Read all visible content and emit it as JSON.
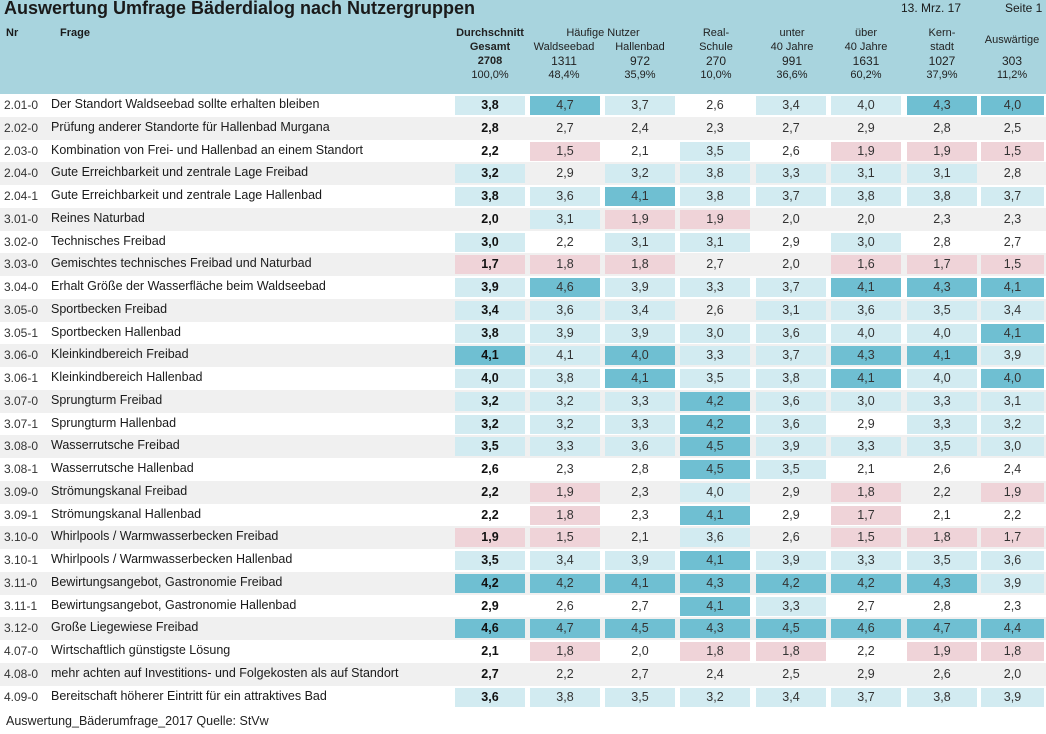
{
  "title": "Auswertung Umfrage Bäderdialog nach Nutzergruppen",
  "date": "13. Mrz. 17",
  "page": "Seite 1",
  "columns_header": {
    "nr": "Nr",
    "frage": "Frage",
    "gesamt_l1": "Durchschnitt",
    "gesamt_l2": "Gesamt",
    "gesamt_n": "2708",
    "gesamt_pct": "100,0%",
    "haeufige": "Häufige Nutzer",
    "waldseebad": "Waldseebad",
    "waldseebad_n": "1311",
    "waldseebad_pct": "48,4%",
    "hallenbad": "Hallenbad",
    "hallenbad_n": "972",
    "hallenbad_pct": "35,9%",
    "real_l1": "Real-",
    "real_l2": "Schule",
    "real_n": "270",
    "real_pct": "10,0%",
    "unter_l1": "unter",
    "unter_l2": "40 Jahre",
    "unter_n": "991",
    "unter_pct": "36,6%",
    "ueber_l1": "über",
    "ueber_l2": "40 Jahre",
    "ueber_n": "1631",
    "ueber_pct": "60,2%",
    "kern_l1": "Kern-",
    "kern_l2": "stadt",
    "kern_n": "1027",
    "kern_pct": "37,9%",
    "aus_l1": "Auswärtige",
    "aus_n": "303",
    "aus_pct": "11,2%"
  },
  "colors": {
    "dark": "#6fbfd2",
    "light": "#d2ebf1",
    "pink": "#efd3d8",
    "header": "#a8d4de"
  },
  "rows": [
    {
      "nr": "2.01-0",
      "frage": "Der Standort Waldseebad sollte erhalten bleiben",
      "v": [
        "3,8",
        "4,7",
        "3,7",
        "2,6",
        "3,4",
        "4,0",
        "4,3",
        "4,0"
      ],
      "c": [
        "l",
        "d",
        "l",
        "n",
        "l",
        "l",
        "d",
        "d"
      ]
    },
    {
      "nr": "2.02-0",
      "frage": "Prüfung anderer Standorte für Hallenbad Murgana",
      "v": [
        "2,8",
        "2,7",
        "2,4",
        "2,3",
        "2,7",
        "2,9",
        "2,8",
        "2,5"
      ],
      "c": [
        "n",
        "n",
        "n",
        "n",
        "n",
        "n",
        "n",
        "n"
      ]
    },
    {
      "nr": "2.03-0",
      "frage": "Kombination von Frei- und Hallenbad an einem Standort",
      "v": [
        "2,2",
        "1,5",
        "2,1",
        "3,5",
        "2,6",
        "1,9",
        "1,9",
        "1,5"
      ],
      "c": [
        "n",
        "p",
        "n",
        "l",
        "n",
        "p",
        "p",
        "p"
      ]
    },
    {
      "nr": "2.04-0",
      "frage": "Gute Erreichbarkeit und zentrale Lage Freibad",
      "v": [
        "3,2",
        "2,9",
        "3,2",
        "3,8",
        "3,3",
        "3,1",
        "3,1",
        "2,8"
      ],
      "c": [
        "l",
        "n",
        "l",
        "l",
        "l",
        "l",
        "l",
        "n"
      ]
    },
    {
      "nr": "2.04-1",
      "frage": "Gute Erreichbarkeit und zentrale Lage Hallenbad",
      "v": [
        "3,8",
        "3,6",
        "4,1",
        "3,8",
        "3,7",
        "3,8",
        "3,8",
        "3,7"
      ],
      "c": [
        "l",
        "l",
        "d",
        "l",
        "l",
        "l",
        "l",
        "l"
      ]
    },
    {
      "nr": "3.01-0",
      "frage": "Reines Naturbad",
      "v": [
        "2,0",
        "3,1",
        "1,9",
        "1,9",
        "2,0",
        "2,0",
        "2,3",
        "2,3"
      ],
      "c": [
        "n",
        "l",
        "p",
        "p",
        "n",
        "n",
        "n",
        "n"
      ]
    },
    {
      "nr": "3.02-0",
      "frage": "Technisches Freibad",
      "v": [
        "3,0",
        "2,2",
        "3,1",
        "3,1",
        "2,9",
        "3,0",
        "2,8",
        "2,7"
      ],
      "c": [
        "l",
        "n",
        "l",
        "l",
        "n",
        "l",
        "n",
        "n"
      ]
    },
    {
      "nr": "3.03-0",
      "frage": "Gemischtes technisches Freibad und Naturbad",
      "v": [
        "1,7",
        "1,8",
        "1,8",
        "2,7",
        "2,0",
        "1,6",
        "1,7",
        "1,5"
      ],
      "c": [
        "p",
        "p",
        "p",
        "n",
        "n",
        "p",
        "p",
        "p"
      ]
    },
    {
      "nr": "3.04-0",
      "frage": "Erhalt Größe der Wasserfläche beim Waldseebad",
      "v": [
        "3,9",
        "4,6",
        "3,9",
        "3,3",
        "3,7",
        "4,1",
        "4,3",
        "4,1"
      ],
      "c": [
        "l",
        "d",
        "l",
        "l",
        "l",
        "d",
        "d",
        "d"
      ]
    },
    {
      "nr": "3.05-0",
      "frage": "Sportbecken Freibad",
      "v": [
        "3,4",
        "3,6",
        "3,4",
        "2,6",
        "3,1",
        "3,6",
        "3,5",
        "3,4"
      ],
      "c": [
        "l",
        "l",
        "l",
        "n",
        "l",
        "l",
        "l",
        "l"
      ]
    },
    {
      "nr": "3.05-1",
      "frage": "Sportbecken Hallenbad",
      "v": [
        "3,8",
        "3,9",
        "3,9",
        "3,0",
        "3,6",
        "4,0",
        "4,0",
        "4,1"
      ],
      "c": [
        "l",
        "l",
        "l",
        "l",
        "l",
        "l",
        "l",
        "d"
      ]
    },
    {
      "nr": "3.06-0",
      "frage": "Kleinkindbereich Freibad",
      "v": [
        "4,1",
        "4,1",
        "4,0",
        "3,3",
        "3,7",
        "4,3",
        "4,1",
        "3,9"
      ],
      "c": [
        "d",
        "l",
        "d",
        "l",
        "l",
        "d",
        "d",
        "l"
      ]
    },
    {
      "nr": "3.06-1",
      "frage": "Kleinkindbereich Hallenbad",
      "v": [
        "4,0",
        "3,8",
        "4,1",
        "3,5",
        "3,8",
        "4,1",
        "4,0",
        "4,0"
      ],
      "c": [
        "l",
        "l",
        "d",
        "l",
        "l",
        "d",
        "l",
        "d"
      ]
    },
    {
      "nr": "3.07-0",
      "frage": "Sprungturm Freibad",
      "v": [
        "3,2",
        "3,2",
        "3,3",
        "4,2",
        "3,6",
        "3,0",
        "3,3",
        "3,1"
      ],
      "c": [
        "l",
        "l",
        "l",
        "d",
        "l",
        "l",
        "l",
        "l"
      ]
    },
    {
      "nr": "3.07-1",
      "frage": "Sprungturm Hallenbad",
      "v": [
        "3,2",
        "3,2",
        "3,3",
        "4,2",
        "3,6",
        "2,9",
        "3,3",
        "3,2"
      ],
      "c": [
        "l",
        "l",
        "l",
        "d",
        "l",
        "n",
        "l",
        "l"
      ]
    },
    {
      "nr": "3.08-0",
      "frage": "Wasserrutsche Freibad",
      "v": [
        "3,5",
        "3,3",
        "3,6",
        "4,5",
        "3,9",
        "3,3",
        "3,5",
        "3,0"
      ],
      "c": [
        "l",
        "l",
        "l",
        "d",
        "l",
        "l",
        "l",
        "l"
      ]
    },
    {
      "nr": "3.08-1",
      "frage": "Wasserrutsche Hallenbad",
      "v": [
        "2,6",
        "2,3",
        "2,8",
        "4,5",
        "3,5",
        "2,1",
        "2,6",
        "2,4"
      ],
      "c": [
        "n",
        "n",
        "n",
        "d",
        "l",
        "n",
        "n",
        "n"
      ]
    },
    {
      "nr": "3.09-0",
      "frage": "Strömungskanal Freibad",
      "v": [
        "2,2",
        "1,9",
        "2,3",
        "4,0",
        "2,9",
        "1,8",
        "2,2",
        "1,9"
      ],
      "c": [
        "n",
        "p",
        "n",
        "l",
        "n",
        "p",
        "n",
        "p"
      ]
    },
    {
      "nr": "3.09-1",
      "frage": "Strömungskanal Hallenbad",
      "v": [
        "2,2",
        "1,8",
        "2,3",
        "4,1",
        "2,9",
        "1,7",
        "2,1",
        "2,2"
      ],
      "c": [
        "n",
        "p",
        "n",
        "d",
        "n",
        "p",
        "n",
        "n"
      ]
    },
    {
      "nr": "3.10-0",
      "frage": "Whirlpools / Warmwasserbecken Freibad",
      "v": [
        "1,9",
        "1,5",
        "2,1",
        "3,6",
        "2,6",
        "1,5",
        "1,8",
        "1,7"
      ],
      "c": [
        "p",
        "p",
        "n",
        "l",
        "n",
        "p",
        "p",
        "p"
      ]
    },
    {
      "nr": "3.10-1",
      "frage": "Whirlpools / Warmwasserbecken Hallenbad",
      "v": [
        "3,5",
        "3,4",
        "3,9",
        "4,1",
        "3,9",
        "3,3",
        "3,5",
        "3,6"
      ],
      "c": [
        "l",
        "l",
        "l",
        "d",
        "l",
        "l",
        "l",
        "l"
      ]
    },
    {
      "nr": "3.11-0",
      "frage": "Bewirtungsangebot, Gastronomie Freibad",
      "v": [
        "4,2",
        "4,2",
        "4,1",
        "4,3",
        "4,2",
        "4,2",
        "4,3",
        "3,9"
      ],
      "c": [
        "d",
        "d",
        "d",
        "d",
        "d",
        "d",
        "d",
        "l"
      ]
    },
    {
      "nr": "3.11-1",
      "frage": "Bewirtungsangebot, Gastronomie Hallenbad",
      "v": [
        "2,9",
        "2,6",
        "2,7",
        "4,1",
        "3,3",
        "2,7",
        "2,8",
        "2,3"
      ],
      "c": [
        "n",
        "n",
        "n",
        "d",
        "l",
        "n",
        "n",
        "n"
      ]
    },
    {
      "nr": "3.12-0",
      "frage": "Große Liegewiese Freibad",
      "v": [
        "4,6",
        "4,7",
        "4,5",
        "4,3",
        "4,5",
        "4,6",
        "4,7",
        "4,4"
      ],
      "c": [
        "d",
        "d",
        "d",
        "d",
        "d",
        "d",
        "d",
        "d"
      ]
    },
    {
      "nr": "4.07-0",
      "frage": "Wirtschaftlich günstigste Lösung",
      "v": [
        "2,1",
        "1,8",
        "2,0",
        "1,8",
        "1,8",
        "2,2",
        "1,9",
        "1,8"
      ],
      "c": [
        "n",
        "p",
        "n",
        "p",
        "p",
        "n",
        "p",
        "p"
      ]
    },
    {
      "nr": "4.08-0",
      "frage": "mehr achten auf Investitions- und Folgekosten als auf Standort",
      "v": [
        "2,7",
        "2,2",
        "2,7",
        "2,4",
        "2,5",
        "2,9",
        "2,6",
        "2,0"
      ],
      "c": [
        "n",
        "n",
        "n",
        "n",
        "n",
        "n",
        "n",
        "n"
      ]
    },
    {
      "nr": "4.09-0",
      "frage": "Bereitschaft höherer Eintritt für ein attraktives Bad",
      "v": [
        "3,6",
        "3,8",
        "3,5",
        "3,2",
        "3,4",
        "3,7",
        "3,8",
        "3,9"
      ],
      "c": [
        "l",
        "l",
        "l",
        "l",
        "l",
        "l",
        "l",
        "l"
      ]
    }
  ],
  "footer": "Auswertung_Bäderumfrage_2017 Quelle: StVw"
}
